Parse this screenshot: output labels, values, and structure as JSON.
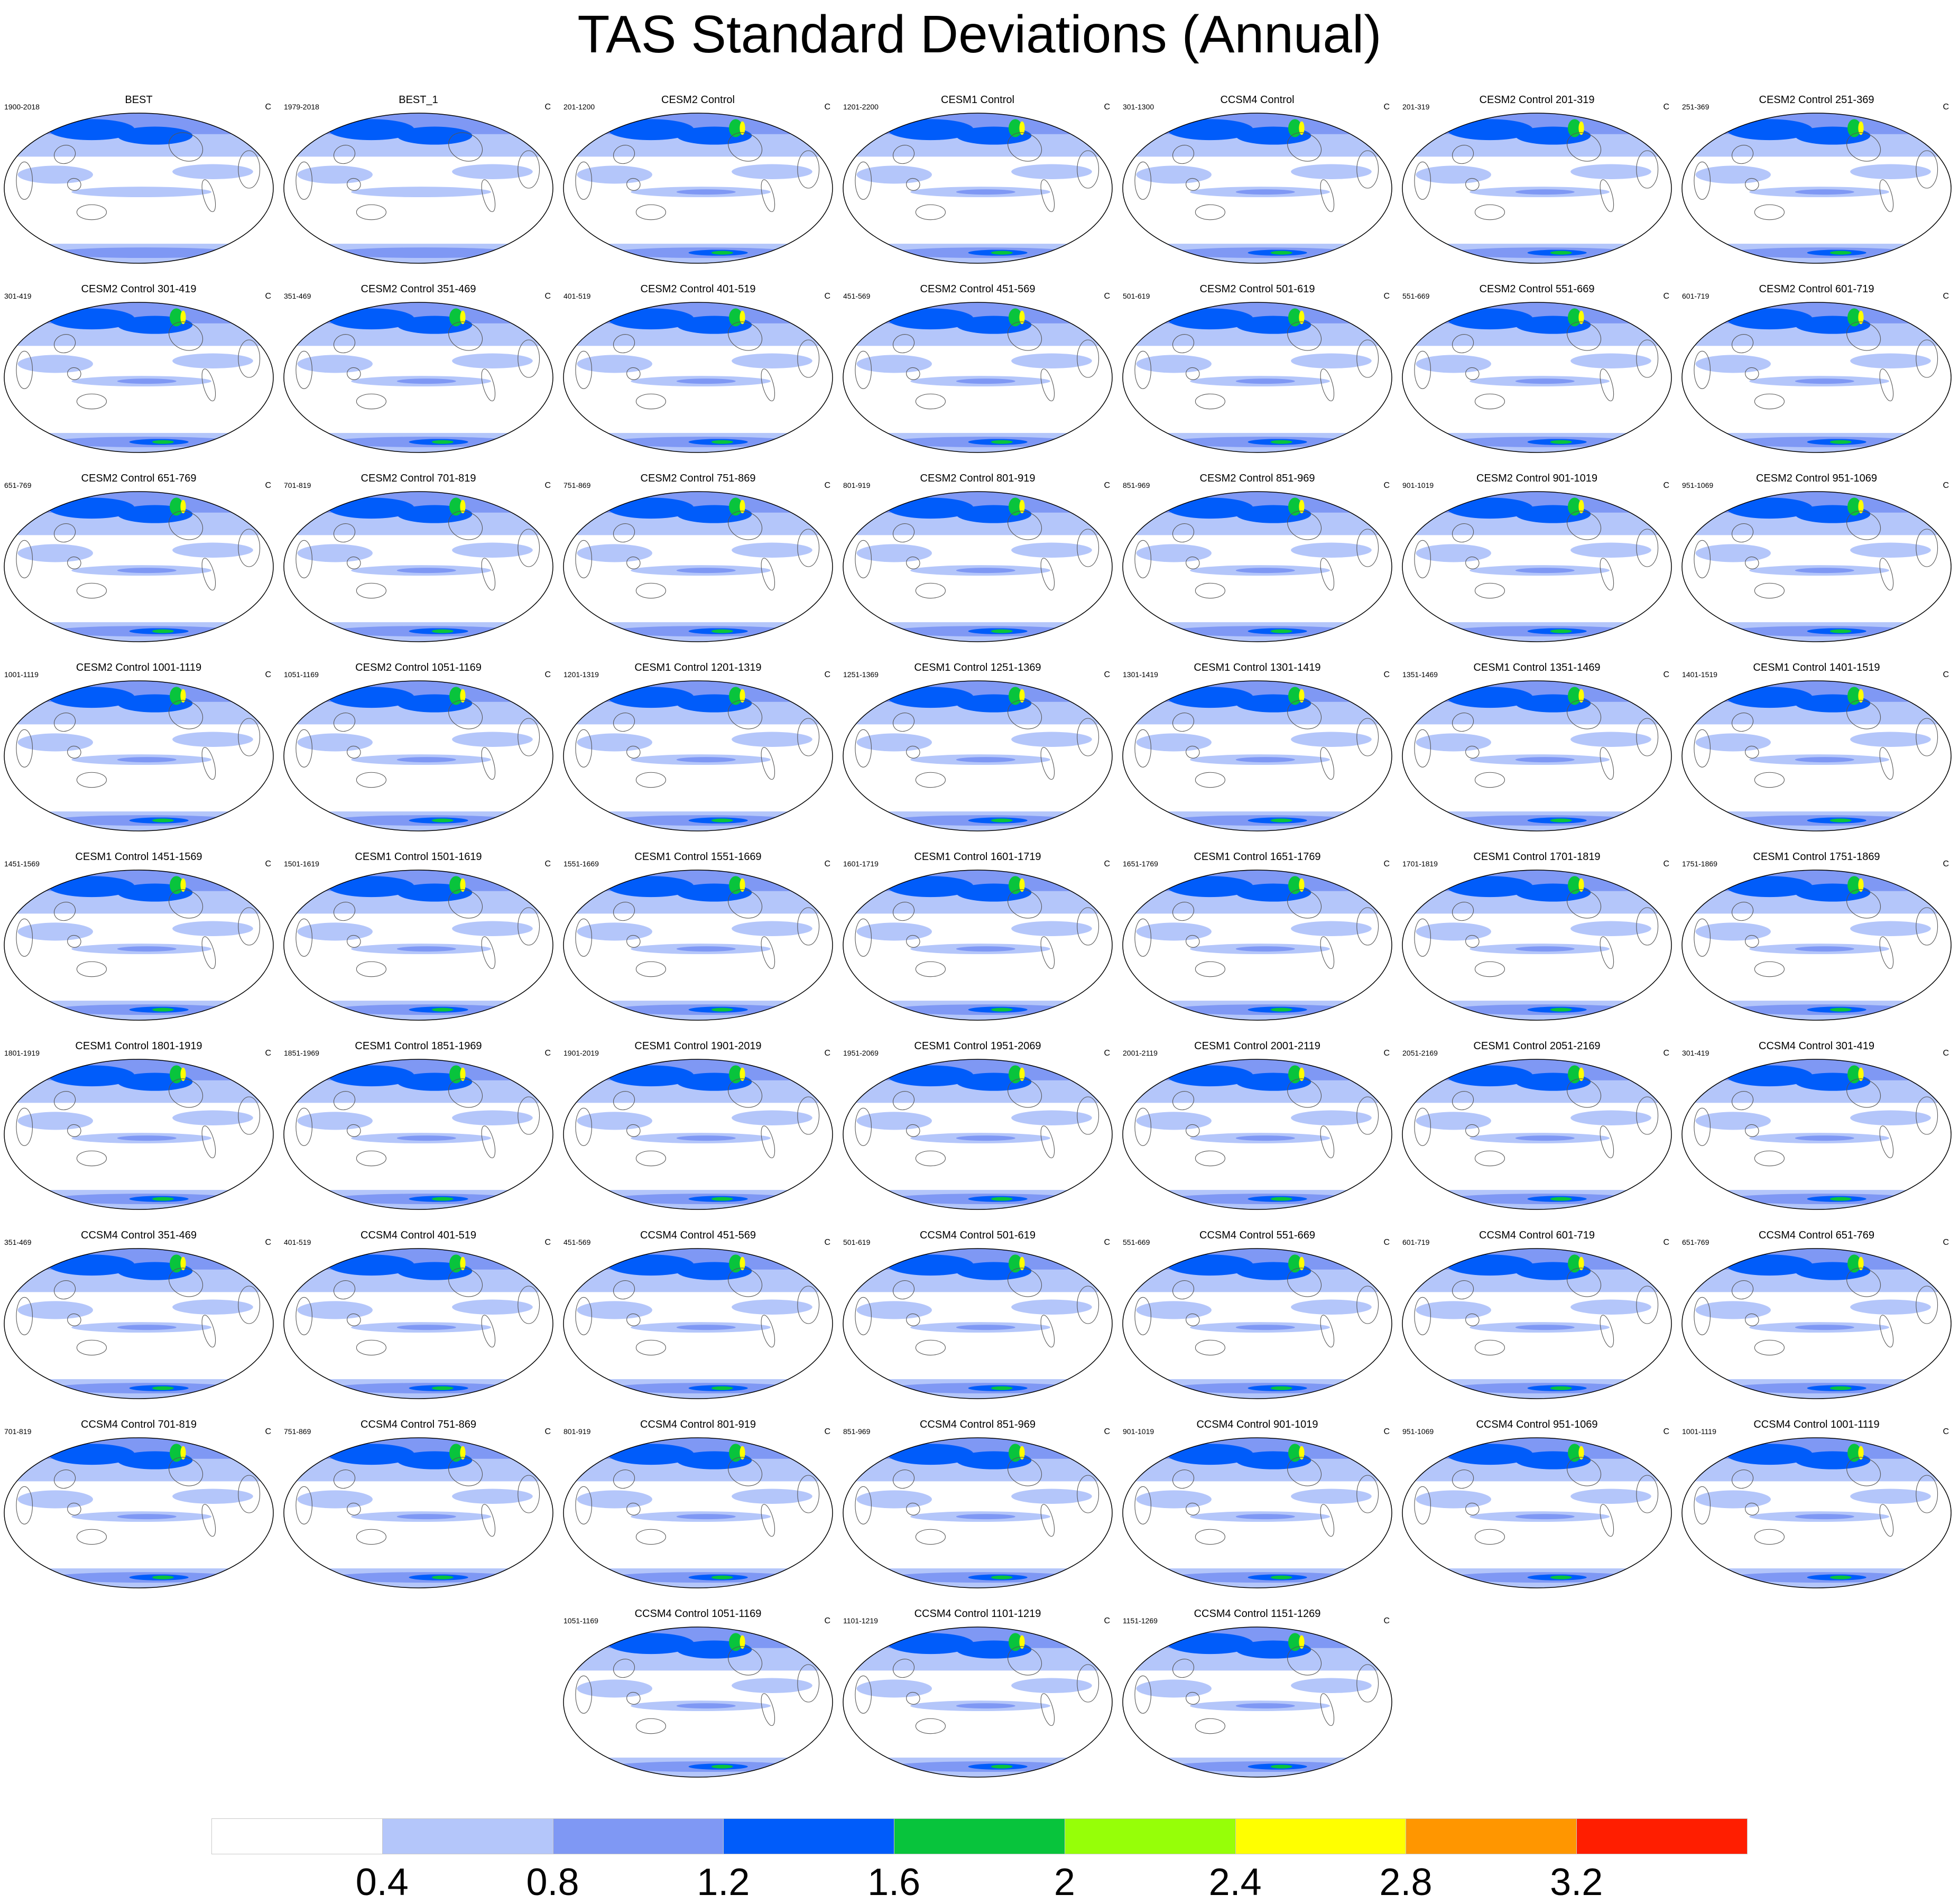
{
  "title": "TAS Standard Deviations (Annual)",
  "units": "C",
  "colors": {
    "levels": [
      "#ffffff",
      "#b4c6fa",
      "#7f98f4",
      "#005cfa",
      "#08c43c",
      "#96ff08",
      "#ffff00",
      "#ff9600",
      "#ff1e00"
    ]
  },
  "chart_data": {
    "type": "heatmap",
    "description_type": "grid of global filled-contour maps",
    "colorbar": {
      "ticks": [
        "0.4",
        "0.8",
        "1.2",
        "1.6",
        "2",
        "2.4",
        "2.8",
        "3.2"
      ],
      "levels": [
        0.4,
        0.8,
        1.2,
        1.6,
        2.0,
        2.4,
        2.8,
        3.2
      ]
    },
    "panels": [
      {
        "title": "BEST",
        "years": "1900-2018",
        "units": "C"
      },
      {
        "title": "BEST_1",
        "years": "1979-2018",
        "units": "C"
      },
      {
        "title": "CESM2 Control",
        "years": "201-1200",
        "units": "C"
      },
      {
        "title": "CESM1 Control",
        "years": "1201-2200",
        "units": "C"
      },
      {
        "title": "CCSM4 Control",
        "years": "301-1300",
        "units": "C"
      },
      {
        "title": "CESM2 Control 201-319",
        "years": "201-319",
        "units": "C"
      },
      {
        "title": "CESM2 Control 251-369",
        "years": "251-369",
        "units": "C"
      },
      {
        "title": "CESM2 Control 301-419",
        "years": "301-419",
        "units": "C"
      },
      {
        "title": "CESM2 Control 351-469",
        "years": "351-469",
        "units": "C"
      },
      {
        "title": "CESM2 Control 401-519",
        "years": "401-519",
        "units": "C"
      },
      {
        "title": "CESM2 Control 451-569",
        "years": "451-569",
        "units": "C"
      },
      {
        "title": "CESM2 Control 501-619",
        "years": "501-619",
        "units": "C"
      },
      {
        "title": "CESM2 Control 551-669",
        "years": "551-669",
        "units": "C"
      },
      {
        "title": "CESM2 Control 601-719",
        "years": "601-719",
        "units": "C"
      },
      {
        "title": "CESM2 Control 651-769",
        "years": "651-769",
        "units": "C"
      },
      {
        "title": "CESM2 Control 701-819",
        "years": "701-819",
        "units": "C"
      },
      {
        "title": "CESM2 Control 751-869",
        "years": "751-869",
        "units": "C"
      },
      {
        "title": "CESM2 Control 801-919",
        "years": "801-919",
        "units": "C"
      },
      {
        "title": "CESM2 Control 851-969",
        "years": "851-969",
        "units": "C"
      },
      {
        "title": "CESM2 Control 901-1019",
        "years": "901-1019",
        "units": "C"
      },
      {
        "title": "CESM2 Control 951-1069",
        "years": "951-1069",
        "units": "C"
      },
      {
        "title": "CESM2 Control 1001-1119",
        "years": "1001-1119",
        "units": "C"
      },
      {
        "title": "CESM2 Control 1051-1169",
        "years": "1051-1169",
        "units": "C"
      },
      {
        "title": "CESM1 Control 1201-1319",
        "years": "1201-1319",
        "units": "C"
      },
      {
        "title": "CESM1 Control 1251-1369",
        "years": "1251-1369",
        "units": "C"
      },
      {
        "title": "CESM1 Control 1301-1419",
        "years": "1301-1419",
        "units": "C"
      },
      {
        "title": "CESM1 Control 1351-1469",
        "years": "1351-1469",
        "units": "C"
      },
      {
        "title": "CESM1 Control 1401-1519",
        "years": "1401-1519",
        "units": "C"
      },
      {
        "title": "CESM1 Control 1451-1569",
        "years": "1451-1569",
        "units": "C"
      },
      {
        "title": "CESM1 Control 1501-1619",
        "years": "1501-1619",
        "units": "C"
      },
      {
        "title": "CESM1 Control 1551-1669",
        "years": "1551-1669",
        "units": "C"
      },
      {
        "title": "CESM1 Control 1601-1719",
        "years": "1601-1719",
        "units": "C"
      },
      {
        "title": "CESM1 Control 1651-1769",
        "years": "1651-1769",
        "units": "C"
      },
      {
        "title": "CESM1 Control 1701-1819",
        "years": "1701-1819",
        "units": "C"
      },
      {
        "title": "CESM1 Control 1751-1869",
        "years": "1751-1869",
        "units": "C"
      },
      {
        "title": "CESM1 Control 1801-1919",
        "years": "1801-1919",
        "units": "C"
      },
      {
        "title": "CESM1 Control 1851-1969",
        "years": "1851-1969",
        "units": "C"
      },
      {
        "title": "CESM1 Control 1901-2019",
        "years": "1901-2019",
        "units": "C"
      },
      {
        "title": "CESM1 Control 1951-2069",
        "years": "1951-2069",
        "units": "C"
      },
      {
        "title": "CESM1 Control 2001-2119",
        "years": "2001-2119",
        "units": "C"
      },
      {
        "title": "CESM1 Control 2051-2169",
        "years": "2051-2169",
        "units": "C"
      },
      {
        "title": "CCSM4 Control 301-419",
        "years": "301-419",
        "units": "C"
      },
      {
        "title": "CCSM4 Control 351-469",
        "years": "351-469",
        "units": "C"
      },
      {
        "title": "CCSM4 Control 401-519",
        "years": "401-519",
        "units": "C"
      },
      {
        "title": "CCSM4 Control 451-569",
        "years": "451-569",
        "units": "C"
      },
      {
        "title": "CCSM4 Control 501-619",
        "years": "501-619",
        "units": "C"
      },
      {
        "title": "CCSM4 Control 551-669",
        "years": "551-669",
        "units": "C"
      },
      {
        "title": "CCSM4 Control 601-719",
        "years": "601-719",
        "units": "C"
      },
      {
        "title": "CCSM4 Control 651-769",
        "years": "651-769",
        "units": "C"
      },
      {
        "title": "CCSM4 Control 701-819",
        "years": "701-819",
        "units": "C"
      },
      {
        "title": "CCSM4 Control 751-869",
        "years": "751-869",
        "units": "C"
      },
      {
        "title": "CCSM4 Control 801-919",
        "years": "801-919",
        "units": "C"
      },
      {
        "title": "CCSM4 Control 851-969",
        "years": "851-969",
        "units": "C"
      },
      {
        "title": "CCSM4 Control 901-1019",
        "years": "901-1019",
        "units": "C"
      },
      {
        "title": "CCSM4 Control 951-1069",
        "years": "951-1069",
        "units": "C"
      },
      {
        "title": "CCSM4 Control 1001-1119",
        "years": "1001-1119",
        "units": "C"
      },
      {
        "title": "CCSM4 Control 1051-1169",
        "years": "1051-1169",
        "units": "C"
      },
      {
        "title": "CCSM4 Control 1101-1219",
        "years": "1101-1219",
        "units": "C"
      },
      {
        "title": "CCSM4 Control 1151-1269",
        "years": "1151-1269",
        "units": "C"
      }
    ]
  }
}
